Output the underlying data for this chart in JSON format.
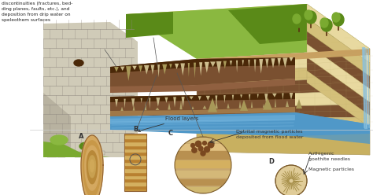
{
  "bg_color": "#f8f5ef",
  "top_text": "discontinuities (fractures, bed-\nding planes, faults, etc.), and\ndeposition from drip water on\nspeleothem surfaces",
  "flood_layers_label": "Flood layers",
  "label_A": "A",
  "label_B": "B",
  "label_C": "C",
  "label_D": "D",
  "detrital_label": "Detrital magnetic particles\ndeposited from flood water",
  "authigenic_label": "Authigenic\ngoethite needles",
  "magnetic_label": "Magnetic particles",
  "colors": {
    "limestone1": "#e8d9a0",
    "limestone2": "#d4c07a",
    "limestone3": "#c8b060",
    "limestone4": "#b89840",
    "grass_bright": "#7aaa30",
    "grass_dark": "#5a8a18",
    "grass_mid": "#8ab840",
    "water_blue": "#5098c8",
    "water_light": "#78b8e0",
    "cave_bg": "#7a5030",
    "cave_dark": "#4a2808",
    "cave_floor": "#906040",
    "cliff_light": "#d0cbb8",
    "cliff_mid": "#b8b2a0",
    "cliff_dark": "#908880",
    "stalactite": "#c8b888",
    "stalactite_dark": "#a89858",
    "stalagmite": "#b0a068",
    "rock_brown": "#8b6030",
    "tan_A": "#d4a860",
    "tan_B": "#c89840",
    "stripe_B": "#b88030",
    "circle_C_bg": "#c8a870",
    "circle_C_band1": "#d4b878",
    "circle_C_band2": "#b89050",
    "circle_C_spot": "#7a4820",
    "circle_D_bg": "#e0cc98",
    "circle_D_needle": "#a08840",
    "sky": "#e8e0d0",
    "topsoil": "#c8a060",
    "wheat_field": "#d4b860",
    "waterfall": "#88c0e0",
    "arrow_color": "#333333",
    "text_color": "#222222"
  },
  "figsize": [
    4.74,
    2.48
  ],
  "dpi": 100
}
